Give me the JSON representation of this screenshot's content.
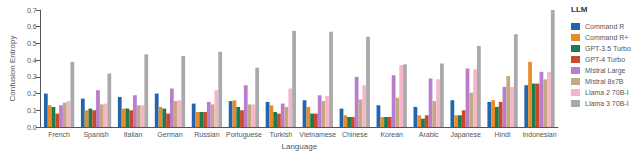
{
  "chart_data": {
    "type": "bar",
    "xlabel": "Language",
    "ylabel": "Confusion Entropy",
    "legend_title": "LLM",
    "legend": "right",
    "grid": false,
    "categories": [
      "French",
      "Spanish",
      "Italian",
      "German",
      "Russian",
      "Portuguese",
      "Turkish",
      "Vietnamese",
      "Chinese",
      "Korean",
      "Arabic",
      "Japanese",
      "Hindi",
      "Indonesian"
    ],
    "series": [
      {
        "name": "Command R",
        "color": "#2166ac",
        "values": [
          0.2,
          0.17,
          0.18,
          0.2,
          0.14,
          0.155,
          0.15,
          0.16,
          0.11,
          0.13,
          0.12,
          0.16,
          0.15,
          0.25
        ]
      },
      {
        "name": "Command R+",
        "color": "#e88c2a",
        "values": [
          0.13,
          0.1,
          0.11,
          0.12,
          0.09,
          0.16,
          0.13,
          0.12,
          0.07,
          0.06,
          0.07,
          0.07,
          0.16,
          0.39
        ]
      },
      {
        "name": "GPT-3.5 Turbo",
        "color": "#1a7c4f",
        "values": [
          0.12,
          0.11,
          0.11,
          0.11,
          0.09,
          0.12,
          0.09,
          0.08,
          0.06,
          0.06,
          0.05,
          0.07,
          0.12,
          0.26
        ]
      },
      {
        "name": "GPT-4 Turbo",
        "color": "#c94a2a",
        "values": [
          0.08,
          0.1,
          0.1,
          0.08,
          0.09,
          0.1,
          0.08,
          0.08,
          0.06,
          0.06,
          0.07,
          0.1,
          0.15,
          0.26
        ]
      },
      {
        "name": "Mistral Large",
        "color": "#b97ecb",
        "values": [
          0.13,
          0.22,
          0.19,
          0.23,
          0.15,
          0.25,
          0.14,
          0.19,
          0.3,
          0.31,
          0.29,
          0.35,
          0.24,
          0.33
        ]
      },
      {
        "name": "Mistral 8x7B",
        "color": "#c4a882",
        "values": [
          0.145,
          0.135,
          0.13,
          0.155,
          0.135,
          0.135,
          0.12,
          0.155,
          0.165,
          0.175,
          0.155,
          0.205,
          0.305,
          0.285
        ]
      },
      {
        "name": "Llama 2 70B-I",
        "color": "#f4b6c8",
        "values": [
          0.155,
          0.14,
          0.13,
          0.16,
          0.22,
          0.135,
          0.23,
          0.185,
          0.25,
          0.37,
          0.285,
          0.345,
          0.24,
          0.33
        ]
      },
      {
        "name": "Llama 3 70B-I",
        "color": "#aaaaaa",
        "values": [
          0.39,
          0.32,
          0.435,
          0.425,
          0.45,
          0.355,
          0.575,
          0.57,
          0.54,
          0.375,
          0.38,
          0.485,
          0.555,
          0.7
        ]
      }
    ],
    "ylim": [
      0.0,
      0.7
    ],
    "yticks": [
      {
        "value": 0.0,
        "label": "0.0"
      },
      0.1,
      0.2,
      0.3,
      0.4,
      0.5,
      0.6,
      0.7
    ]
  }
}
